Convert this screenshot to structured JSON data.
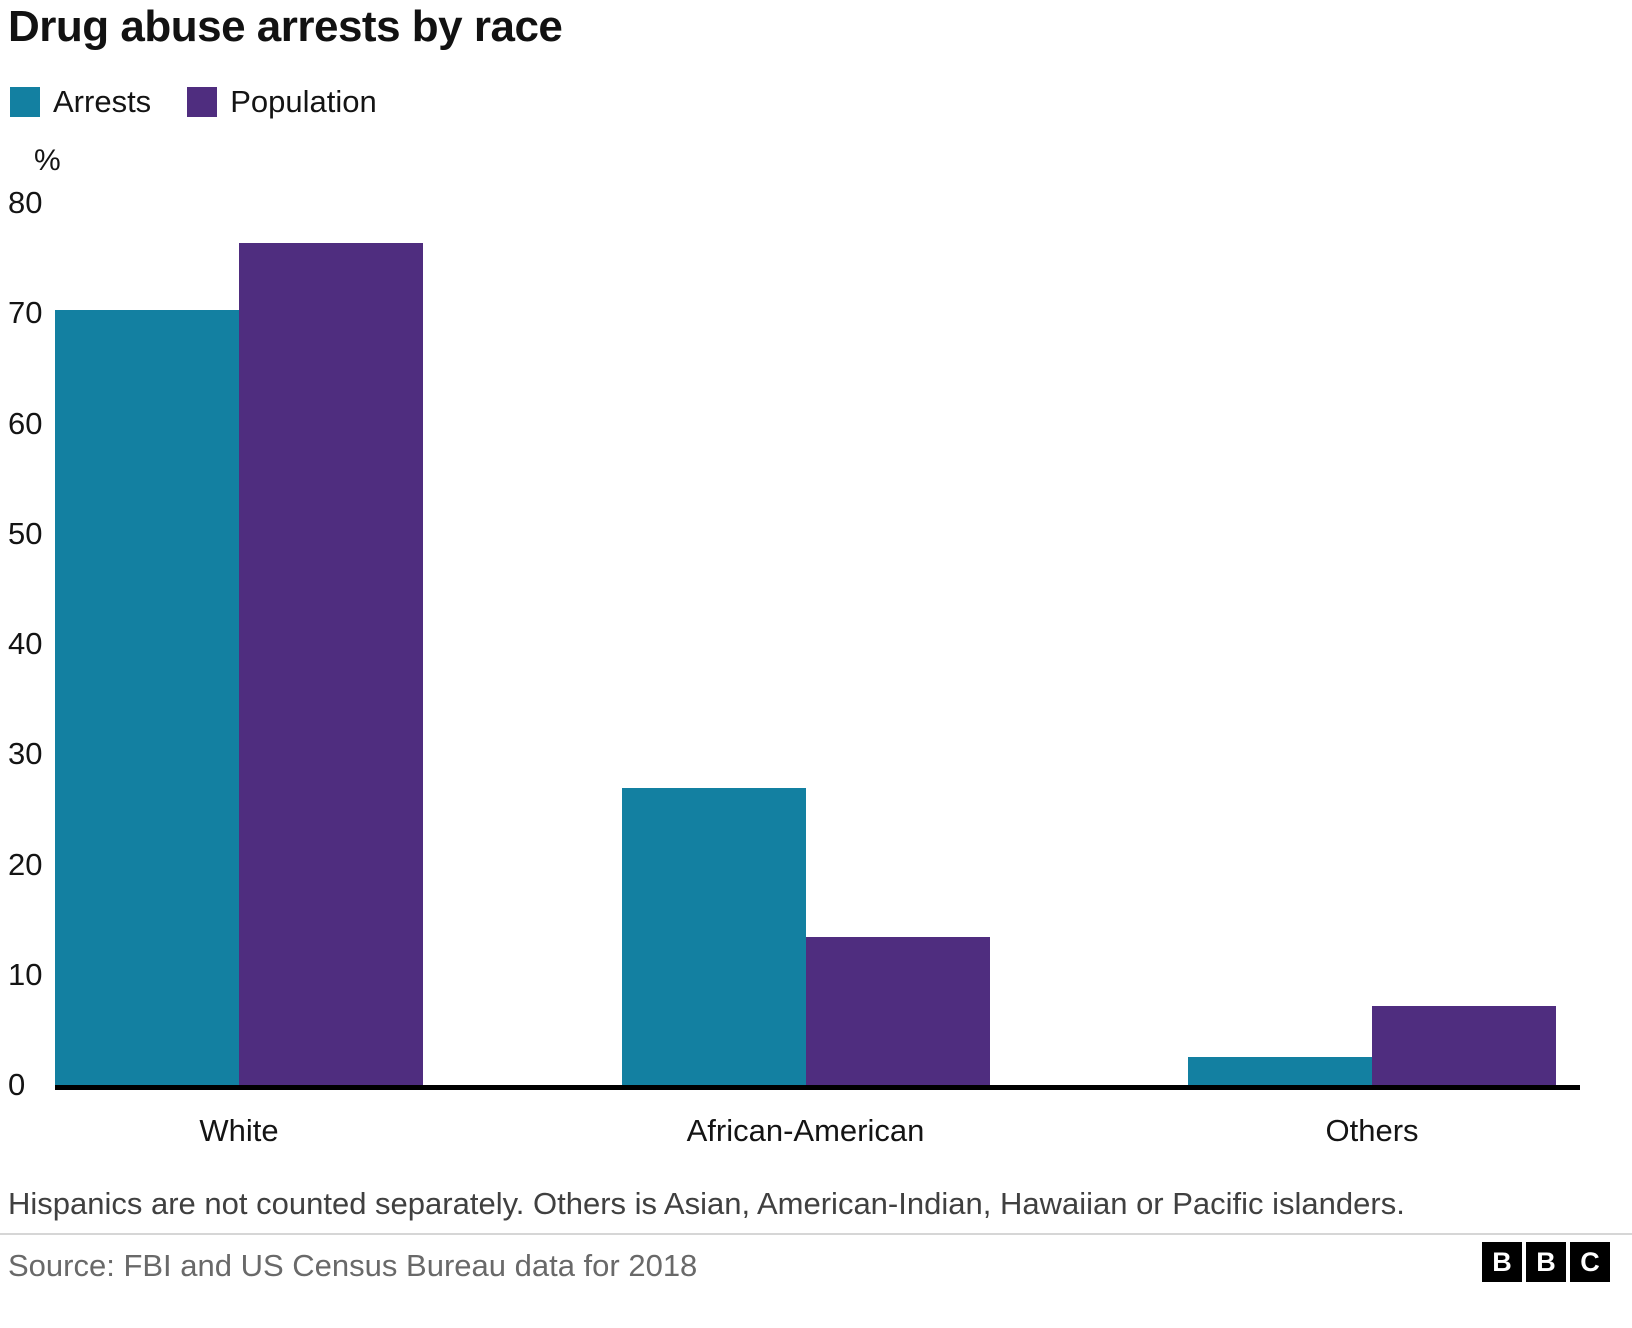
{
  "title": "Drug abuse arrests by race",
  "footnote": "Hispanics are not counted separately. Others is Asian, American-Indian, Hawaiian or Pacific islanders.",
  "source": "Source: FBI and US Census Bureau data for 2018",
  "logo": {
    "letters": [
      "B",
      "B",
      "C"
    ]
  },
  "chart_data": {
    "type": "bar",
    "title": "Drug abuse arrests by race",
    "categories": [
      "White",
      "African-American",
      "Others"
    ],
    "series": [
      {
        "name": "Arrests",
        "color": "#1380A1",
        "values": [
          70.3,
          26.9,
          2.5
        ]
      },
      {
        "name": "Population",
        "color": "#4F2D7F",
        "values": [
          76.4,
          13.4,
          7.2
        ]
      }
    ],
    "xlabel": "",
    "ylabel": "%",
    "ylim": [
      0,
      80
    ],
    "yticks": [
      0,
      10,
      20,
      30,
      40,
      50,
      60,
      70,
      80
    ],
    "grid": false,
    "legend_position": "top-left",
    "baseline_color": "#000000"
  }
}
